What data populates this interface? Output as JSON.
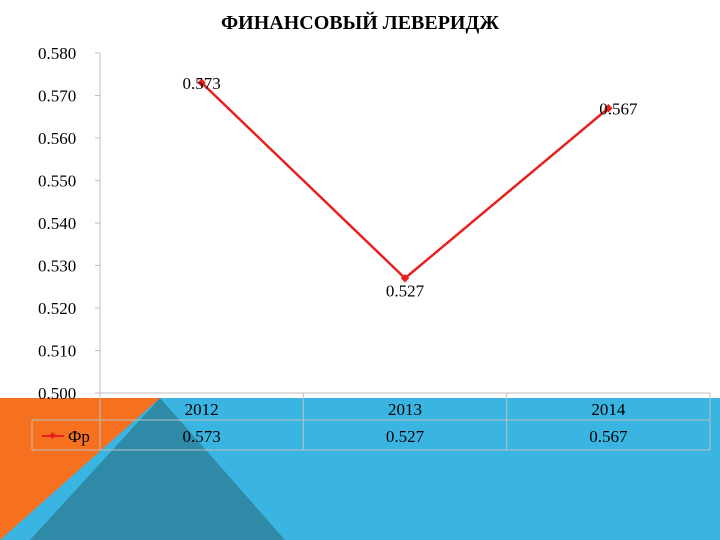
{
  "page": {
    "title": "ФИНАНСОВЫЙ ЛЕВЕРИДЖ"
  },
  "colors": {
    "background_blue": "#3ab4e0",
    "background_orange": "#f57120",
    "background_dark": "#2f8aa8",
    "series_line": "#e8211f",
    "axis": "#bfbfbf",
    "text": "#000000"
  },
  "chart_data": {
    "type": "line",
    "title": "ФИНАНСОВЫЙ ЛЕВЕРИДЖ",
    "xlabel": "",
    "ylabel": "",
    "categories": [
      "2012",
      "2013",
      "2014"
    ],
    "series": [
      {
        "name": "Фр",
        "values": [
          0.573,
          0.527,
          0.567
        ],
        "value_labels": [
          "0.573",
          "0.527",
          "0.567"
        ]
      }
    ],
    "ylim": [
      0.5,
      0.58
    ],
    "yticks": [
      "0.580",
      "0.570",
      "0.560",
      "0.550",
      "0.540",
      "0.530",
      "0.520",
      "0.510",
      "0.500"
    ],
    "grid": false,
    "data_table": true,
    "legend": "in data table"
  }
}
